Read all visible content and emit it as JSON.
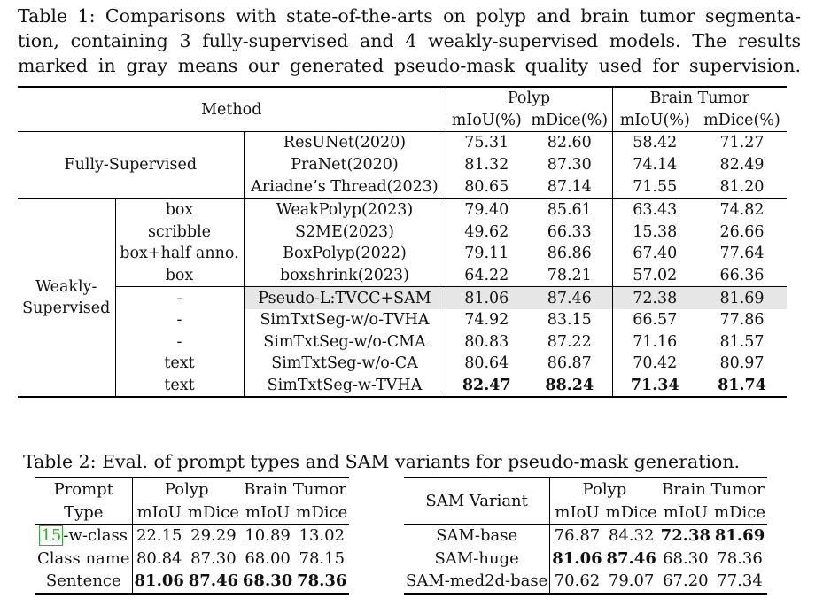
{
  "table1": {
    "caption_lines": [
      "Table 1: Comparisons with state-of-the-arts on polyp and brain tumor segmenta-",
      "tion, containing 3 fully-supervised and 4 weakly-supervised models. The results",
      "marked in gray means our generated pseudo-mask quality used for supervision."
    ],
    "header": {
      "method": "Method",
      "polyp": "Polyp",
      "brain": "Brain Tumor",
      "miou": "mIoU(%)",
      "mdice": "mDice(%)"
    },
    "groups": {
      "fully": "Fully-Supervised",
      "weakly_line1": "Weakly-",
      "weakly_line2": "Supervised"
    },
    "fully_rows": [
      {
        "method": "ResUNet(2020)",
        "p_miou": "75.31",
        "p_mdice": "82.60",
        "b_miou": "58.42",
        "b_mdice": "71.27"
      },
      {
        "method": "PraNet(2020)",
        "p_miou": "81.32",
        "p_mdice": "87.30",
        "b_miou": "74.14",
        "b_mdice": "82.49"
      },
      {
        "method": "Ariadne’s Thread(2023)",
        "p_miou": "80.65",
        "p_mdice": "87.14",
        "b_miou": "71.55",
        "b_mdice": "81.20"
      }
    ],
    "weak_rows_a": [
      {
        "anno": "box",
        "method": "WeakPolyp(2023)",
        "p_miou": "79.40",
        "p_mdice": "85.61",
        "b_miou": "63.43",
        "b_mdice": "74.82"
      },
      {
        "anno": "scribble",
        "method": "S2ME(2023)",
        "p_miou": "49.62",
        "p_mdice": "66.33",
        "b_miou": "15.38",
        "b_mdice": "26.66"
      },
      {
        "anno": "box+half anno.",
        "method": "BoxPolyp(2022)",
        "p_miou": "79.11",
        "p_mdice": "86.86",
        "b_miou": "67.40",
        "b_mdice": "77.64"
      },
      {
        "anno": "box",
        "method": "boxshrink(2023)",
        "p_miou": "64.22",
        "p_mdice": "78.21",
        "b_miou": "57.02",
        "b_mdice": "66.36"
      }
    ],
    "weak_rows_b": [
      {
        "anno": "-",
        "method": "Pseudo-L:TVCC+SAM",
        "p_miou": "81.06",
        "p_mdice": "87.46",
        "b_miou": "72.38",
        "b_mdice": "81.69"
      },
      {
        "anno": "-",
        "method": "SimTxtSeg-w/o-TVHA",
        "p_miou": "74.92",
        "p_mdice": "83.15",
        "b_miou": "66.57",
        "b_mdice": "77.86"
      },
      {
        "anno": "-",
        "method": "SimTxtSeg-w/o-CMA",
        "p_miou": "80.83",
        "p_mdice": "87.22",
        "b_miou": "71.16",
        "b_mdice": "81.57"
      },
      {
        "anno": "text",
        "method": "SimTxtSeg-w/o-CA",
        "p_miou": "80.64",
        "p_mdice": "86.87",
        "b_miou": "70.42",
        "b_mdice": "80.97"
      },
      {
        "anno": "text",
        "method": "SimTxtSeg-w-TVHA",
        "p_miou": "82.47",
        "p_mdice": "88.24",
        "b_miou": "71.34",
        "b_mdice": "81.74"
      }
    ]
  },
  "table2": {
    "caption": "Table 2: Eval. of prompt types and SAM variants for pseudo-mask generation.",
    "left": {
      "h_prompt1": "Prompt",
      "h_prompt2": "Type",
      "polyp": "Polyp",
      "brain": "Brain Tumor",
      "miou": "mIoU",
      "mdice": "mDice",
      "cite": "15",
      "row1_suffix": "-w-class",
      "rows": [
        {
          "name": "",
          "p_miou": "22.15",
          "p_mdice": "29.29",
          "b_miou": "10.89",
          "b_mdice": "13.02"
        },
        {
          "name": "Class name",
          "p_miou": "80.84",
          "p_mdice": "87.30",
          "b_miou": "68.00",
          "b_mdice": "78.15"
        },
        {
          "name": "Sentence",
          "p_miou": "81.06",
          "p_mdice": "87.46",
          "b_miou": "68.30",
          "b_mdice": "78.36"
        }
      ]
    },
    "right": {
      "h_variant": "SAM Variant",
      "polyp": "Polyp",
      "brain": "Brain Tumor",
      "miou": "mIoU",
      "mdice": "mDice",
      "rows": [
        {
          "name": "SAM-base",
          "p_miou": "76.87",
          "p_mdice": "84.32",
          "b_miou": "72.38",
          "b_mdice": "81.69"
        },
        {
          "name": "SAM-huge",
          "p_miou": "81.06",
          "p_mdice": "87.46",
          "b_miou": "68.30",
          "b_mdice": "78.36"
        },
        {
          "name": "SAM-med2d-base",
          "p_miou": "70.62",
          "p_mdice": "79.07",
          "b_miou": "67.20",
          "b_mdice": "77.34"
        }
      ]
    }
  }
}
